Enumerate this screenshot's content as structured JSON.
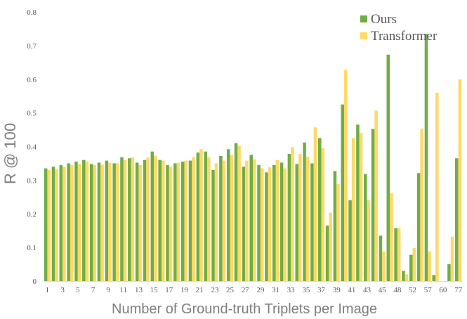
{
  "chart_data": {
    "type": "bar",
    "title": "",
    "xlabel": "Number of Ground-truth Triplets per Image",
    "ylabel": "R @ 100",
    "ylim": [
      0,
      0.8
    ],
    "yticks": [
      "0",
      "0.1",
      "0.2",
      "0.3",
      "0.4",
      "0.5",
      "0.6",
      "0.7",
      "0.8"
    ],
    "grid": false,
    "legend_position": "top-right",
    "colors": {
      "Ours": "#70AD47",
      "Transformer": "#FFD966"
    },
    "categories": [
      "1",
      "2",
      "3",
      "4",
      "5",
      "6",
      "7",
      "8",
      "9",
      "10",
      "11",
      "12",
      "13",
      "14",
      "15",
      "16",
      "17",
      "18",
      "19",
      "20",
      "21",
      "22",
      "23",
      "24",
      "25",
      "26",
      "27",
      "28",
      "29",
      "30",
      "31",
      "32",
      "33",
      "34",
      "35",
      "36",
      "37",
      "38",
      "39",
      "40",
      "41",
      "42",
      "43",
      "44",
      "45",
      "46",
      "48",
      "50",
      "52",
      "55",
      "57",
      "58",
      "60",
      "76",
      "77"
    ],
    "visible_tick_labels": [
      "1",
      "3",
      "5",
      "7",
      "9",
      "11",
      "13",
      "15",
      "17",
      "19",
      "21",
      "23",
      "25",
      "27",
      "29",
      "31",
      "33",
      "35",
      "37",
      "39",
      "41",
      "43",
      "45",
      "48",
      "52",
      "57",
      "60",
      "77"
    ],
    "series": [
      {
        "name": "Ours",
        "values": [
          0.335,
          0.34,
          0.345,
          0.35,
          0.355,
          0.36,
          0.348,
          0.352,
          0.358,
          0.35,
          0.368,
          0.365,
          0.352,
          0.36,
          0.385,
          0.36,
          0.345,
          0.35,
          0.355,
          0.358,
          0.382,
          0.385,
          0.33,
          0.372,
          0.392,
          0.41,
          0.34,
          0.375,
          0.345,
          0.323,
          0.345,
          0.352,
          0.378,
          0.348,
          0.412,
          0.35,
          0.425,
          0.165,
          0.327,
          0.525,
          0.24,
          0.465,
          0.318,
          0.452,
          0.135,
          0.673,
          0.157,
          0.03,
          0.078,
          0.321,
          0.735,
          0.018,
          0.0,
          0.05,
          0.365
        ]
      },
      {
        "name": "Transformer",
        "values": [
          0.33,
          0.333,
          0.34,
          0.345,
          0.348,
          0.355,
          0.345,
          0.346,
          0.352,
          0.35,
          0.36,
          0.368,
          0.345,
          0.367,
          0.372,
          0.358,
          0.34,
          0.352,
          0.358,
          0.368,
          0.392,
          0.368,
          0.35,
          0.358,
          0.375,
          0.402,
          0.358,
          0.362,
          0.335,
          0.338,
          0.36,
          0.335,
          0.398,
          0.378,
          0.37,
          0.457,
          0.395,
          0.203,
          0.288,
          0.627,
          0.425,
          0.44,
          0.24,
          0.507,
          0.088,
          0.262,
          0.157,
          0.02,
          0.098,
          0.453,
          0.088,
          0.56,
          0.0,
          0.132,
          0.6
        ]
      }
    ]
  }
}
